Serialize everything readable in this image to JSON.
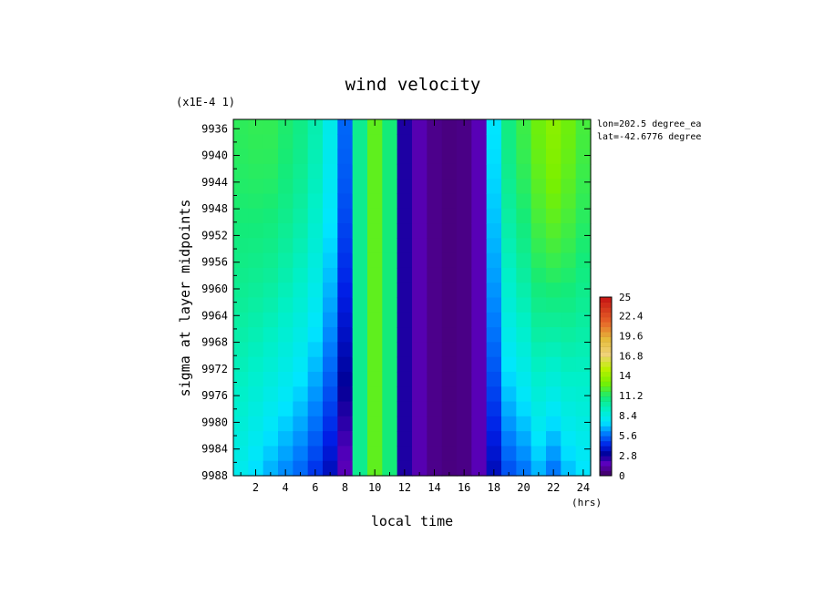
{
  "chart_data": {
    "type": "heatmap",
    "title": "wind velocity",
    "xlabel": "local time",
    "x_units": "(hrs)",
    "ylabel": "sigma at layer midpoints",
    "y_scale_note": "(x1E-4 1)",
    "annotations": [
      "lon=202.5 degree_ea",
      "lat=-42.6776 degree"
    ],
    "xlim": [
      0.5,
      24.5
    ],
    "ylim": [
      9934.6,
      9988
    ],
    "x_ticks": [
      "2",
      "4",
      "6",
      "8",
      "10",
      "12",
      "14",
      "16",
      "18",
      "20",
      "22",
      "24"
    ],
    "y_ticks": [
      "9936",
      "9940",
      "9944",
      "9948",
      "9952",
      "9956",
      "9960",
      "9964",
      "9968",
      "9972",
      "9976",
      "9980",
      "9984",
      "9988"
    ],
    "colorbar": {
      "min": 0,
      "max": 25,
      "labels": [
        "25",
        "22.4",
        "19.6",
        "16.8",
        "14",
        "11.2",
        "8.4",
        "5.6",
        "2.8",
        "0"
      ]
    },
    "hours": [
      1,
      2,
      3,
      4,
      5,
      6,
      7,
      8,
      9,
      10,
      11,
      12,
      13,
      14,
      15,
      16,
      17,
      18,
      19,
      20,
      21,
      22,
      23,
      24
    ],
    "surface_values": [
      8.0,
      7.3,
      6.6,
      6.0,
      5.4,
      4.5,
      3.5,
      1.5,
      10.5,
      12.5,
      11.0,
      2.6,
      1.5,
      0.8,
      0.6,
      0.7,
      1.6,
      3.5,
      5.0,
      5.6,
      6.6,
      5.6,
      6.8,
      7.4
    ],
    "top_values": [
      11.5,
      11.6,
      11.6,
      11.2,
      10.7,
      9.8,
      8.2,
      5.5,
      10.5,
      12.5,
      11.0,
      2.6,
      1.5,
      0.8,
      0.6,
      0.7,
      1.6,
      7.5,
      10.8,
      11.8,
      12.8,
      13.5,
      12.8,
      12.0
    ]
  }
}
